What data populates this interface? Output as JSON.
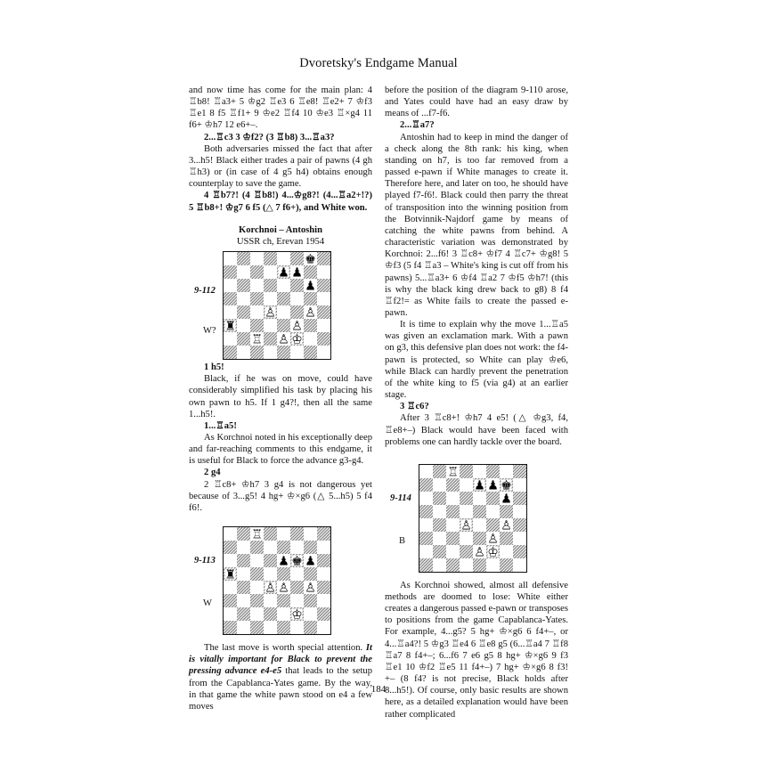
{
  "header": {
    "title": "Dvoretsky's Endgame Manual"
  },
  "left_column": {
    "p1": "and now time has come for the main plan: 4 ♖b8! ♖a3+ 5 ♔g2 ♖e3 6 ♖e8! ♖e2+ 7 ♔f3 ♖e1 8 f5 ♖f1+ 9 ♔e2 ♖f4 10 ♔e3 ♖×g4 11 f6+ ♔h7 12 e6+–.",
    "m1": "2...♖c3 3 ♔f2? (3 ♖b8) 3...♖a3?",
    "p2": "Both adversaries missed the fact that after 3...h5! Black either trades a pair of pawns (4 gh ♖h3) or (in case of 4 g5 h4) obtains enough counterplay to save the game.",
    "m2": "4 ♖b7?! (4 ♖b8!) 4...♔g8?! (4...♖a2+!?) 5 ♖b8+! ♔g7 6 f5 (△ 7 f6+), and White won.",
    "game_players": "Korchnoi – Antoshin",
    "game_event": "USSR ch, Erevan 1954",
    "m3": "1 h5!",
    "p3": "Black, if he was on move, could have considerably simplified his task by placing his own pawn to h5. If 1 g4?!, then all the same 1...h5!.",
    "m4": "1...♖a5!",
    "p4": "As Korchnoi noted in his exceptionally deep and far-reaching comments to this endgame, it is useful for Black to force the advance g3-g4.",
    "m5": "2 g4",
    "p5": "2 ♖c8+ ♔h7 3 g4 is not dangerous yet because of 3...g5! 4 hg+ ♔×g6 (△ 5...h5) 5 f4 f6!.",
    "p6_a": "The last move is worth special attention. ",
    "p6_emph": "It is vitally important for Black to prevent the pressing advance e4-e5",
    "p6_b": " that leads to the setup from the Capablanca-Yates game. By the way, in that game the white pawn stood on e4 a few moves"
  },
  "right_column": {
    "p1": "before the position of the diagram 9-110 arose, and Yates could have had an easy draw by means of ...f7-f6.",
    "m1": "2...♖a7?",
    "p2": "Antoshin had to keep in mind the danger of a check along the 8th rank: his king, when standing on h7, is too far removed from a passed e-pawn if White manages to create it. Therefore here, and later on too, he should have played f7-f6!. Black could then parry the threat of transposition into the winning position from the Botvinnik-Najdorf game by means of catching the white pawns from behind. A characteristic variation was demonstrated by Korchnoi: 2...f6! 3 ♖c8+ ♔f7 4 ♖c7+ ♔g8! 5 ♔f3 (5 f4 ♖a3 – White's king is cut off from his pawns) 5...♖a3+ 6 ♔f4 ♖a2 7 ♔f5 ♔h7! (this is why the black king drew back to g8) 8 f4 ♖f2!= as White fails to create the passed e-pawn.",
    "p3": "It is time to explain why the move 1...♖a5 was given an exclamation mark. With a pawn on g3, this defensive plan does not work: the f4-pawn is protected, so White can play ♔e6, while Black can hardly prevent the penetration of the white king to f5 (via g4) at an earlier stage.",
    "m2": "3 ♖c6?",
    "p4": "After 3 ♖c8+! ♔h7 4 e5! (△ ♔g3, f4, ♖e8+–) Black would have been faced with problems one can hardly tackle over the board.",
    "p5": "As Korchnoi showed, almost all defensive methods are doomed to lose: White either creates a dangerous passed e-pawn or transposes to positions from the game Capablanca-Yates. For example, 4...g5? 5 hg+ ♔×g6 6 f4+–, or 4...♖a4?! 5 ♔g3 ♖e4 6 ♖e8 g5 (6...♖a4 7 ♖f8 ♖a7 8 f4+–; 6...f6 7 e6 g5 8 hg+ ♔×g6 9 f3 ♖e1 10 ♔f2 ♖e5 11 f4+–) 7 hg+ ♔×g6 8 f3! +– (8 f4? is not precise, Black holds after 8...h5!). Of course, only basic results are shown here, as a detailed explanation would have been rather complicated"
  },
  "diagrams": [
    {
      "label": "9-112",
      "side": "W?",
      "pieces": [
        {
          "sq": "g8",
          "glyph": "♚"
        },
        {
          "sq": "e7",
          "glyph": "♟"
        },
        {
          "sq": "f7",
          "glyph": "♟"
        },
        {
          "sq": "g6",
          "glyph": "♟"
        },
        {
          "sq": "d4",
          "glyph": "♙"
        },
        {
          "sq": "g4",
          "glyph": "♙"
        },
        {
          "sq": "a3",
          "glyph": "♜"
        },
        {
          "sq": "f3",
          "glyph": "♙"
        },
        {
          "sq": "c2",
          "glyph": "♖"
        },
        {
          "sq": "e2",
          "glyph": "♙"
        },
        {
          "sq": "f2",
          "glyph": "♔"
        }
      ]
    },
    {
      "label": "9-113",
      "side": "W",
      "pieces": [
        {
          "sq": "c8",
          "glyph": "♖"
        },
        {
          "sq": "e6",
          "glyph": "♟"
        },
        {
          "sq": "f6",
          "glyph": "♚"
        },
        {
          "sq": "g6",
          "glyph": "♟"
        },
        {
          "sq": "a5",
          "glyph": "♜"
        },
        {
          "sq": "d4",
          "glyph": "♙"
        },
        {
          "sq": "e4",
          "glyph": "♙"
        },
        {
          "sq": "g4",
          "glyph": "♙"
        },
        {
          "sq": "f2",
          "glyph": "♔"
        }
      ]
    },
    {
      "label": "9-114",
      "side": "B",
      "pieces": [
        {
          "sq": "c8",
          "glyph": "♖"
        },
        {
          "sq": "e7",
          "glyph": "♟"
        },
        {
          "sq": "f7",
          "glyph": "♟"
        },
        {
          "sq": "g7",
          "glyph": "♚"
        },
        {
          "sq": "g6",
          "glyph": "♟"
        },
        {
          "sq": "d4",
          "glyph": "♙"
        },
        {
          "sq": "g4",
          "glyph": "♙"
        },
        {
          "sq": "f3",
          "glyph": "♙"
        },
        {
          "sq": "e2",
          "glyph": "♙"
        },
        {
          "sq": "f2",
          "glyph": "♔"
        }
      ]
    }
  ],
  "footer": {
    "page_number": "184"
  }
}
